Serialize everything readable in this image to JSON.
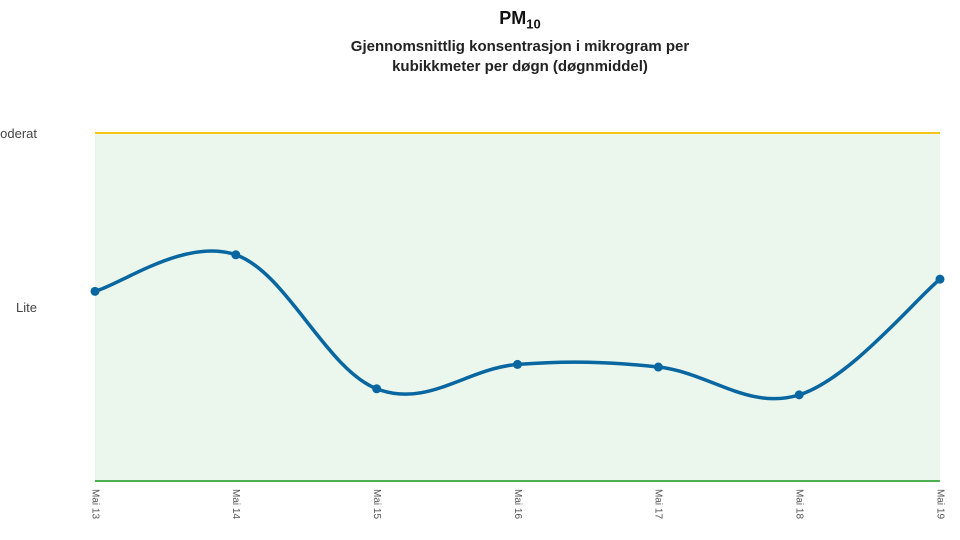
{
  "chart_data": {
    "type": "line",
    "title": "PM",
    "title_subscript": "10",
    "subtitle_lines": [
      "Gjennomsnittlig konsentrasjon i mikrogram per",
      "kubikkmeter per døgn (døgnmiddel)"
    ],
    "categories": [
      "Mai 13",
      "Mai 14",
      "Mai 15",
      "Mai 16",
      "Mai 17",
      "Mai 18",
      "Mai 19"
    ],
    "series": [
      {
        "values": [
          21.8,
          26.0,
          10.6,
          13.4,
          13.1,
          9.9,
          23.2
        ]
      }
    ],
    "ylim": [
      0,
      40
    ],
    "thresholds": [
      {
        "label": "Lite",
        "value": 20,
        "color": "#4caf50"
      },
      {
        "label": "Moderat",
        "value": 40,
        "color": "#f5c518"
      }
    ],
    "band_fill": "#ebf6ec",
    "line_color": "#0866a0",
    "grid": false,
    "legend": "none"
  }
}
